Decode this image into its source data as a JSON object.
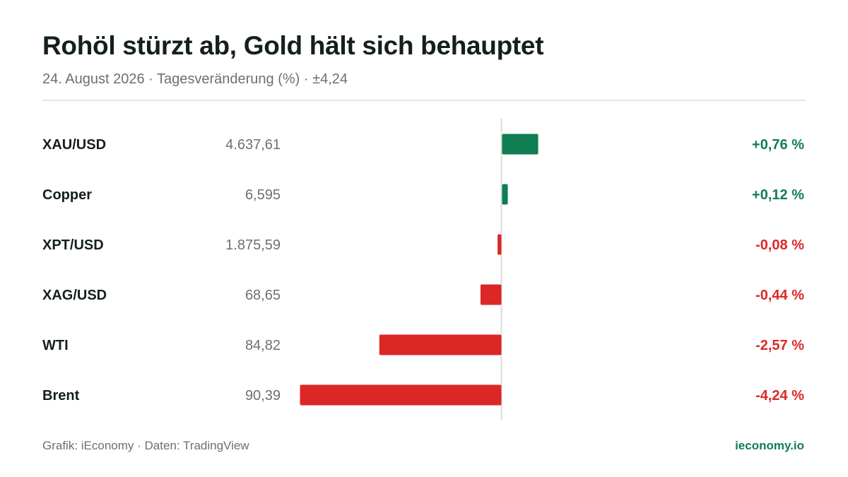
{
  "header": {
    "title": "Rohöl stürzt ab, Gold hält sich behauptet",
    "subtitle": "24. August 2026 · Tagesveränderung (%) · ±4,24"
  },
  "footer": {
    "source": "Grafik: iEconomy · Daten: TradingView",
    "brand": "ieconomy.io"
  },
  "colors": {
    "positive": "#107d52",
    "negative": "#dc2727",
    "axis": "#d9dcda"
  },
  "chart_data": {
    "type": "bar",
    "orientation": "horizontal",
    "xlim": [
      -4.24,
      4.24
    ],
    "categories": [
      "XAU/USD",
      "Copper",
      "XPT/USD",
      "XAG/USD",
      "WTI",
      "Brent"
    ],
    "prices": [
      "4.637,61",
      "6,595",
      "1.875,59",
      "68,65",
      "84,82",
      "90,39"
    ],
    "values": [
      0.76,
      0.12,
      -0.08,
      -0.44,
      -2.57,
      -4.24
    ],
    "value_labels": [
      "+0,76 %",
      "+0,12 %",
      "-0,08 %",
      "-0,44 %",
      "-2,57 %",
      "-4,24 %"
    ]
  }
}
